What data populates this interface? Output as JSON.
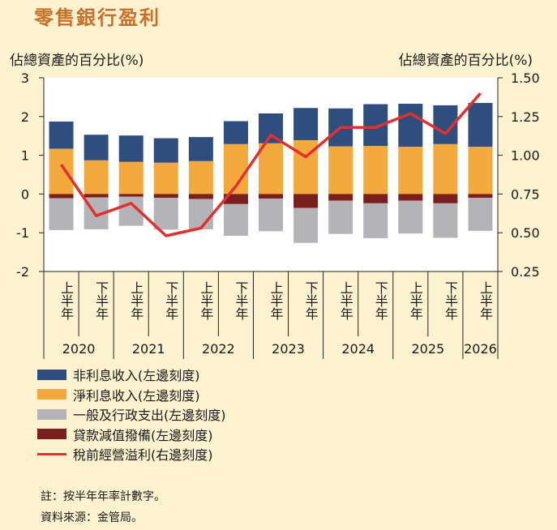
{
  "page": {
    "title": "零售銀行盈利",
    "left_axis_title": "佔總資產的百分比(%)",
    "right_axis_title": "佔總資產的百分比(%)",
    "note": "註：按半年年率計數字。",
    "source": "資料來源：金管局。"
  },
  "colors": {
    "background": "#FDF2D0",
    "plot_bg": "#FFFFFF",
    "non_interest_income": "#2F4E7E",
    "net_interest_income": "#F4A93C",
    "general_admin_expense": "#B4B4B8",
    "loan_impairment": "#7A1E1E",
    "profit_line": "#E03030",
    "title": "#C8702A"
  },
  "chart_data": {
    "type": "bar",
    "stacked": true,
    "categories": [
      "上半年",
      "下半年",
      "上半年",
      "下半年",
      "上半年",
      "下半年",
      "上半年",
      "下半年",
      "上半年",
      "下半年",
      "上半年",
      "下半年",
      "上半年"
    ],
    "year_groups": [
      {
        "label": "2020",
        "count": 2
      },
      {
        "label": "2021",
        "count": 2
      },
      {
        "label": "2022",
        "count": 2
      },
      {
        "label": "2023",
        "count": 2
      },
      {
        "label": "2024",
        "count": 2
      },
      {
        "label": "2025",
        "count": 2
      },
      {
        "label": "2026",
        "count": 1
      }
    ],
    "series": [
      {
        "name": "非利息收入(左邊刻度)",
        "axis": "left",
        "kind": "bar",
        "color_key": "non_interest_income",
        "values": [
          0.7,
          0.66,
          0.68,
          0.63,
          0.62,
          0.59,
          0.77,
          0.83,
          0.98,
          1.08,
          1.11,
          1.0,
          1.13
        ]
      },
      {
        "name": "淨利息收入(左邊刻度)",
        "axis": "left",
        "kind": "bar",
        "color_key": "net_interest_income",
        "values": [
          1.17,
          0.87,
          0.83,
          0.81,
          0.85,
          1.29,
          1.31,
          1.39,
          1.23,
          1.24,
          1.22,
          1.29,
          1.22
        ]
      },
      {
        "name": "一般及行政支出(左邊刻度)",
        "axis": "left",
        "kind": "bar",
        "color_key": "general_admin_expense",
        "values": [
          -0.82,
          -0.82,
          -0.75,
          -0.82,
          -0.78,
          -0.82,
          -0.84,
          -0.9,
          -0.86,
          -0.9,
          -0.85,
          -0.89,
          -0.85
        ]
      },
      {
        "name": "貸款減值撥備(左邊刻度)",
        "axis": "left",
        "kind": "bar",
        "color_key": "loan_impairment",
        "values": [
          -0.11,
          -0.09,
          -0.07,
          -0.1,
          -0.13,
          -0.26,
          -0.12,
          -0.36,
          -0.17,
          -0.24,
          -0.17,
          -0.24,
          -0.1
        ]
      },
      {
        "name": "稅前經營溢利(右邊刻度)",
        "axis": "right",
        "kind": "line",
        "color_key": "profit_line",
        "values": [
          0.94,
          0.61,
          0.69,
          0.48,
          0.53,
          0.8,
          1.13,
          0.99,
          1.18,
          1.18,
          1.27,
          1.14,
          1.4
        ]
      }
    ],
    "left_axis": {
      "min": -2,
      "max": 3,
      "ticks": [
        "3",
        "2",
        "1",
        "0",
        "-1",
        "-2"
      ],
      "tick_values": [
        3,
        2,
        1,
        0,
        -1,
        -2
      ]
    },
    "right_axis": {
      "min": 0.25,
      "max": 1.5,
      "ticks": [
        "1.50",
        "1.25",
        "1.00",
        "0.75",
        "0.50",
        "0.25"
      ],
      "tick_values": [
        1.5,
        1.25,
        1.0,
        0.75,
        0.5,
        0.25
      ]
    },
    "legend_position": "bottom-left",
    "grid": false
  }
}
